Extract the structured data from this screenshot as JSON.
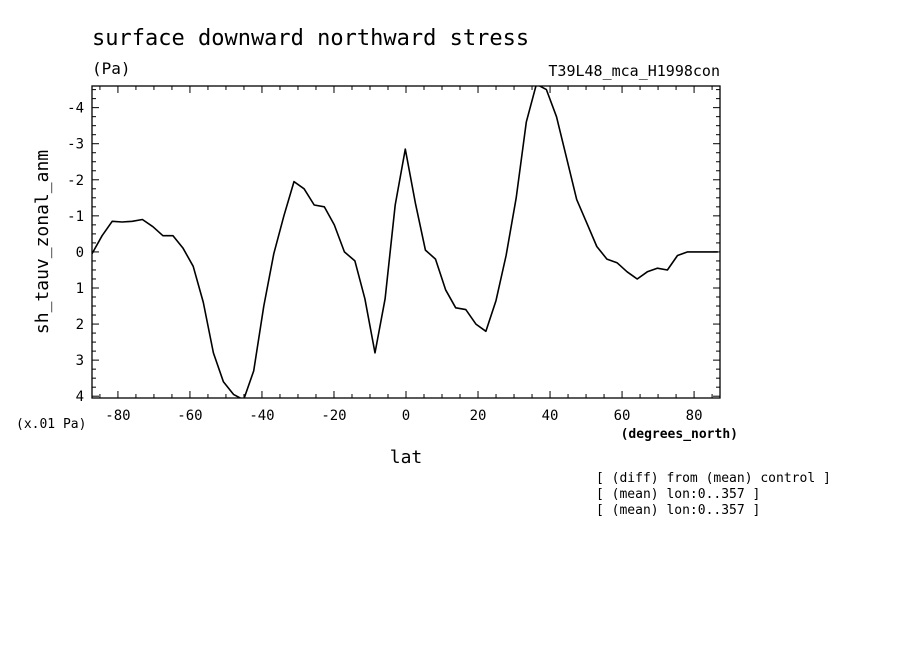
{
  "chart_data": {
    "type": "line",
    "title": "surface downward northward stress",
    "units": "(Pa)",
    "run_label": "T39L48_mca_H1998con",
    "xlabel": "lat",
    "xunits": "(degrees_north)",
    "ylabel": "sh_tauv_zonal_anm",
    "yscale_note": "(x.01 Pa)",
    "xlim": [
      -87.2,
      87.2
    ],
    "ylim": [
      -4.6,
      4.05
    ],
    "y_inverted": true,
    "grid": false,
    "x_ticks": [
      -80,
      -60,
      -40,
      -20,
      0,
      20,
      40,
      60,
      80
    ],
    "x_tick_labels": [
      "-80",
      "-60",
      "-40",
      "-20",
      "0",
      "20",
      "40",
      "60",
      "80"
    ],
    "y_ticks": [
      -4,
      -3,
      -2,
      -1,
      0,
      1,
      2,
      3,
      4
    ],
    "y_tick_labels": [
      "-4",
      "-3",
      "-2",
      "-1",
      "0",
      "1",
      "2",
      "3",
      "4"
    ],
    "series": [
      {
        "x": [
          -87.2,
          -84.4,
          -81.6,
          -78.8,
          -76.0,
          -73.2,
          -70.3,
          -67.5,
          -64.7,
          -61.9,
          -59.1,
          -56.3,
          -53.5,
          -50.7,
          -47.9,
          -45.1,
          -42.3,
          -39.5,
          -36.7,
          -33.9,
          -31.1,
          -28.3,
          -25.5,
          -22.7,
          -19.9,
          -17.1,
          -14.2,
          -11.4,
          -8.6,
          -5.8,
          -3.0,
          -0.2,
          2.6,
          5.4,
          8.2,
          11.0,
          13.8,
          16.6,
          19.4,
          22.2,
          25.0,
          27.8,
          30.6,
          33.4,
          36.2,
          39.0,
          41.8,
          44.6,
          47.4,
          50.2,
          53.0,
          55.8,
          58.6,
          61.4,
          64.2,
          67.0,
          69.8,
          72.6,
          75.4,
          78.2,
          81.0,
          83.8,
          86.6
        ],
        "y": [
          0.05,
          -0.45,
          -0.85,
          -0.83,
          -0.85,
          -0.9,
          -0.7,
          -0.45,
          -0.45,
          -0.1,
          0.4,
          1.4,
          2.8,
          3.6,
          3.95,
          4.1,
          3.3,
          1.5,
          0.05,
          -1.0,
          -1.95,
          -1.75,
          -1.3,
          -1.25,
          -0.75,
          0.0,
          0.25,
          1.3,
          2.8,
          1.3,
          -1.3,
          -2.85,
          -1.35,
          -0.05,
          0.2,
          1.05,
          1.55,
          1.6,
          2.0,
          2.2,
          1.35,
          0.1,
          -1.5,
          -3.6,
          -4.65,
          -4.5,
          -3.75,
          -2.6,
          -1.45,
          -0.8,
          -0.15,
          0.2,
          0.3,
          0.55,
          0.75,
          0.55,
          0.45,
          0.5,
          0.1,
          0.0,
          0.0,
          0.0,
          0.0
        ]
      }
    ]
  },
  "notes": [
    "[ (diff) from (mean) control ]",
    "[ (mean) lon:0..357 ]",
    "[ (mean) lon:0..357 ]"
  ]
}
